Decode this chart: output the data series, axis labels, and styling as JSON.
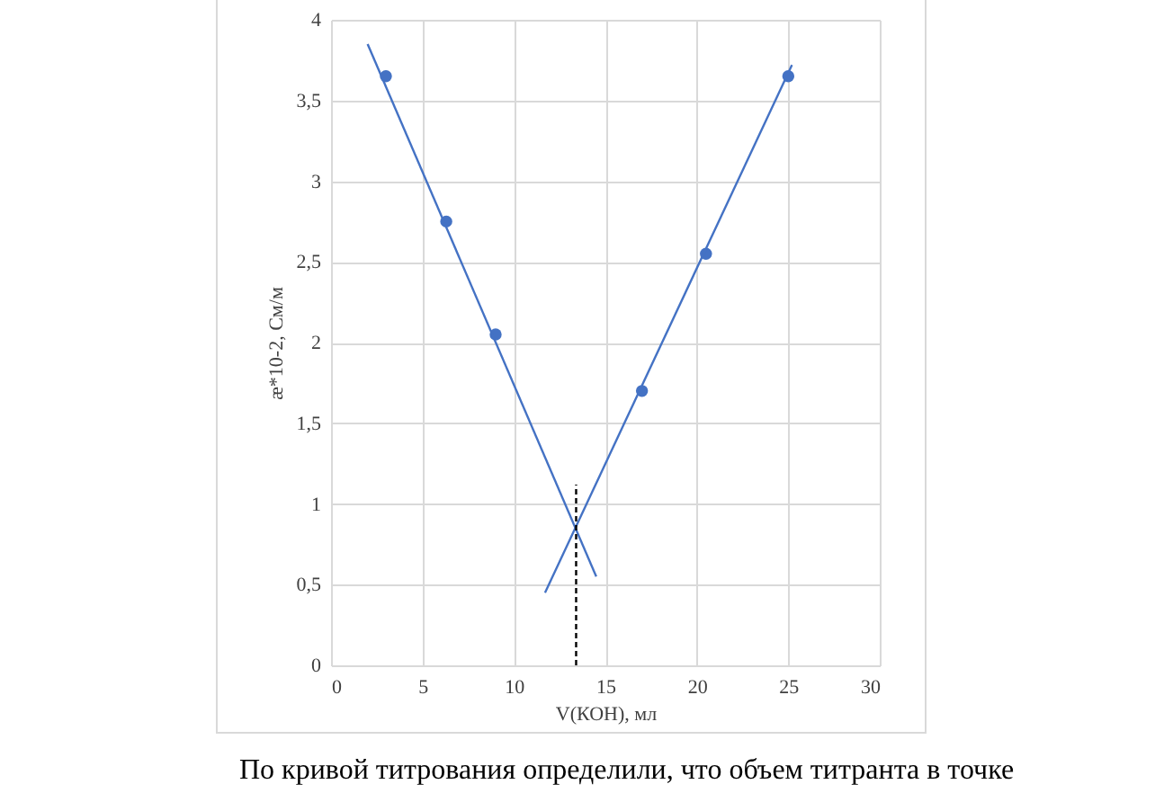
{
  "chart_data": {
    "type": "scatter",
    "xlabel": "V(КОН), мл",
    "ylabel": "æ*10-2, См/м",
    "xlim": [
      0,
      30
    ],
    "xticks": [
      0,
      5,
      10,
      15,
      20,
      25,
      30
    ],
    "ylim": [
      0,
      4
    ],
    "yticks": [
      0,
      {
        "value": 0.5,
        "label": "0,5"
      },
      1,
      {
        "value": 1.5,
        "label": "1,5"
      },
      2,
      {
        "value": 2.5,
        "label": "2,5"
      },
      3,
      {
        "value": 3.5,
        "label": "3,5"
      },
      4
    ],
    "grid": true,
    "series": [
      {
        "marker": "circle",
        "color": "#4472c4",
        "x": [
          3,
          6.3,
          9,
          17,
          20.5,
          25
        ],
        "values": [
          3.65,
          2.75,
          2.05,
          1.7,
          2.55,
          3.65
        ]
      },
      {
        "type": "line",
        "color": "#4472c4",
        "x": [
          2,
          14.5
        ],
        "values": [
          3.85,
          0.55
        ],
        "line_style": "solid",
        "marker": "none"
      },
      {
        "type": "line",
        "color": "#4472c4",
        "x": [
          11.7,
          25.2
        ],
        "values": [
          0.45,
          3.72
        ],
        "line_style": "solid",
        "marker": "none"
      },
      {
        "type": "line",
        "color": "#000000",
        "x": [
          13.4,
          13.4
        ],
        "values": [
          0,
          1.12
        ],
        "line_style": "dashed",
        "marker": "none"
      }
    ],
    "annotations": [
      "По кривой титрования определили, что объем титранта в точке"
    ]
  }
}
